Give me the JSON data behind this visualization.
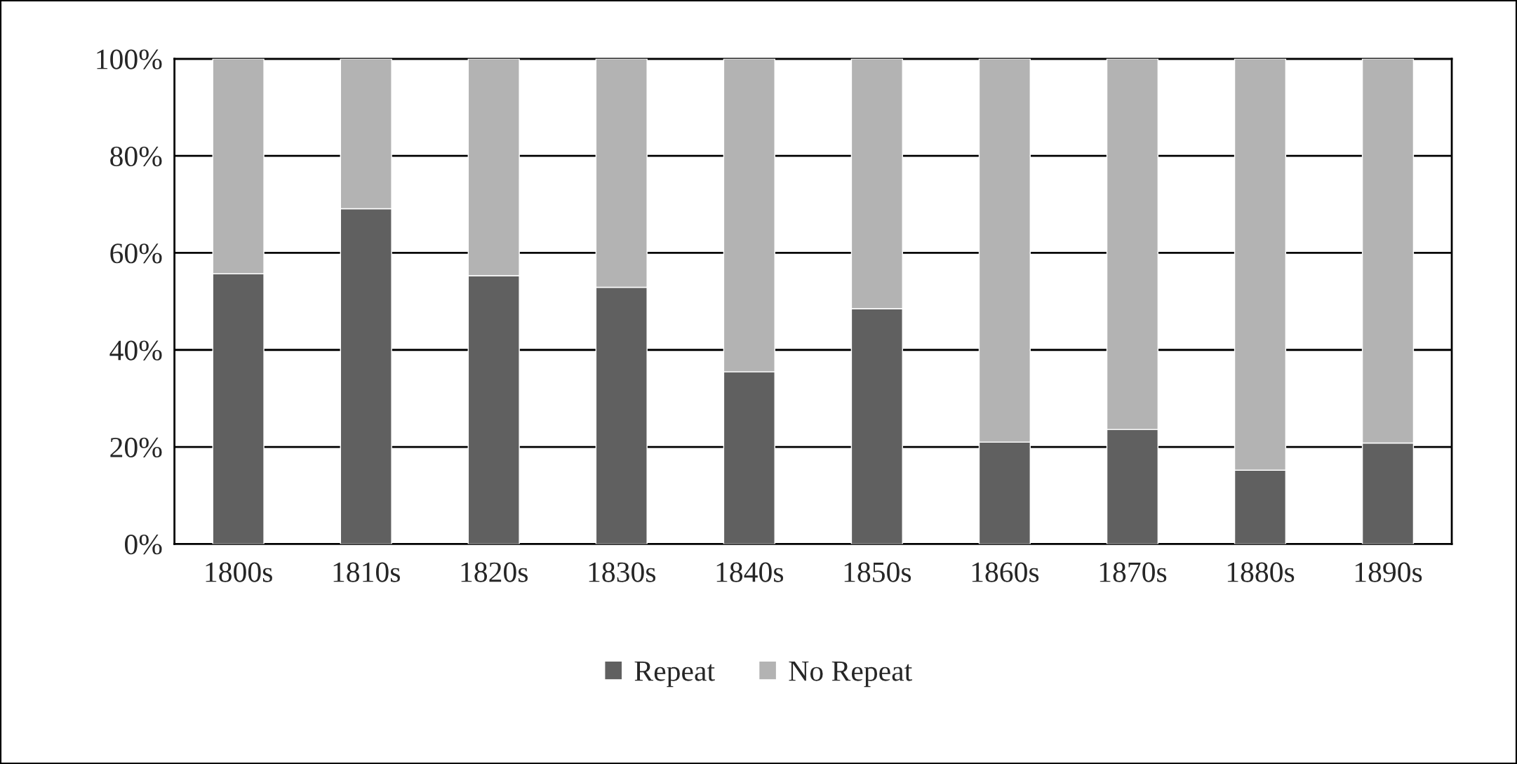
{
  "chart_data": {
    "type": "bar",
    "stacked": true,
    "categories": [
      "1800s",
      "1810s",
      "1820s",
      "1830s",
      "1840s",
      "1850s",
      "1860s",
      "1870s",
      "1880s",
      "1890s"
    ],
    "series": [
      {
        "name": "Repeat",
        "color": "#606060",
        "values": [
          55.7,
          69.1,
          55.3,
          52.9,
          35.5,
          48.5,
          21.0,
          23.6,
          15.2,
          20.8
        ]
      },
      {
        "name": "No Repeat",
        "color": "#b3b3b3",
        "values": [
          44.3,
          30.9,
          44.7,
          47.1,
          64.5,
          51.5,
          79.0,
          76.4,
          84.8,
          79.2
        ]
      }
    ],
    "ylim": [
      0,
      100
    ],
    "yticks": [
      {
        "value": 0,
        "label": "0%"
      },
      {
        "value": 20,
        "label": "20%"
      },
      {
        "value": 40,
        "label": "40%"
      },
      {
        "value": 60,
        "label": "60%"
      },
      {
        "value": 80,
        "label": "80%"
      },
      {
        "value": 100,
        "label": "100%"
      }
    ],
    "grid": "y",
    "legend": "bottom"
  }
}
